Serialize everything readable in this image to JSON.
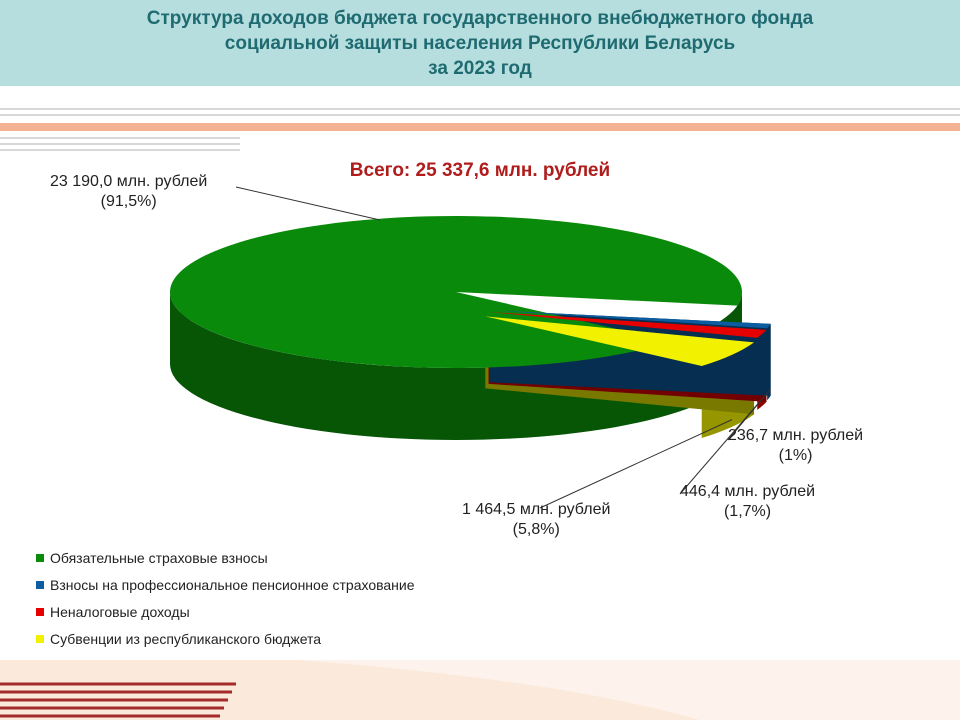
{
  "header": {
    "title_line1": "Структура доходов бюджета государственного внебюджетного фонда",
    "title_line2": "социальной защиты населения Республики Беларусь",
    "title_line3": "за 2023 год"
  },
  "chart_data": {
    "type": "pie",
    "subtitle": "Всего: 25 337,6 млн. рублей",
    "unit": "млн. рублей",
    "series": [
      {
        "name": "Обязательные страховые взносы",
        "value": 23190.0,
        "percent": 91.5,
        "color": "#0a8a0a",
        "label_value": "23 190,0 млн. рублей",
        "label_percent": "(91,5%)"
      },
      {
        "name": "Взносы на профессиональное  пенсионное  страхование",
        "value": 236.7,
        "percent": 1.0,
        "color": "#0b5ca0",
        "label_value": "236,7 млн. рублей",
        "label_percent": "(1%)"
      },
      {
        "name": "Неналоговые доходы",
        "value": 446.4,
        "percent": 1.7,
        "color": "#e60000",
        "label_value": "446,4 млн. рублей",
        "label_percent": "(1,7%)"
      },
      {
        "name": "Субвенции из республиканского  бюджета",
        "value": 1464.5,
        "percent": 5.8,
        "color": "#f2f200",
        "label_value": "1 464,5 млн. рублей",
        "label_percent": "(5,8%)"
      }
    ],
    "legend_position": "bottom-left"
  }
}
